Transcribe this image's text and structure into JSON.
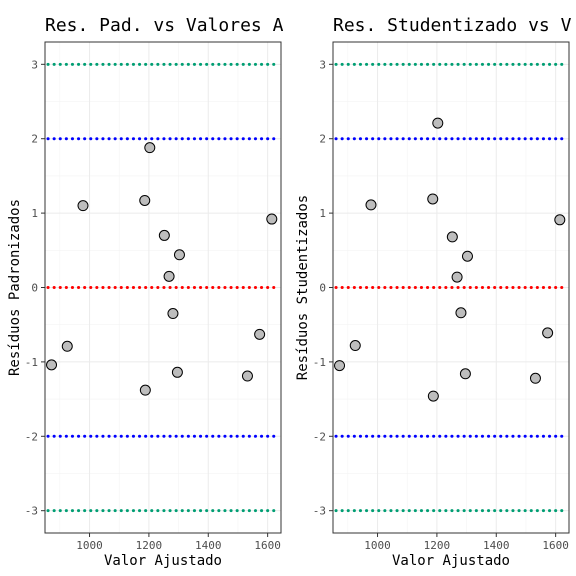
{
  "chart_data": [
    {
      "type": "scatter",
      "title": "Res. Pad. vs Valores A",
      "xlabel": "Valor Ajustado",
      "ylabel": "Resíduos Padronizados",
      "xlim": [
        850,
        1645
      ],
      "ylim": [
        -3.3,
        3.3
      ],
      "x_ticks": [
        1000,
        1200,
        1400,
        1600
      ],
      "y_ticks": [
        -3,
        -2,
        -1,
        0,
        1,
        2,
        3
      ],
      "grid": true,
      "reference_lines": [
        {
          "y": 3,
          "color": "#009E73"
        },
        {
          "y": 2,
          "color": "#0000FF"
        },
        {
          "y": 0,
          "color": "#FF0000"
        },
        {
          "y": -2,
          "color": "#0000FF"
        },
        {
          "y": -3,
          "color": "#009E73"
        }
      ],
      "points": [
        {
          "x": 872,
          "y": -1.04
        },
        {
          "x": 925,
          "y": -0.79
        },
        {
          "x": 978,
          "y": 1.1
        },
        {
          "x": 1186,
          "y": 1.17
        },
        {
          "x": 1188,
          "y": -1.38
        },
        {
          "x": 1203,
          "y": 1.88
        },
        {
          "x": 1252,
          "y": 0.7
        },
        {
          "x": 1268,
          "y": 0.15
        },
        {
          "x": 1281,
          "y": -0.35
        },
        {
          "x": 1296,
          "y": -1.14
        },
        {
          "x": 1303,
          "y": 0.44
        },
        {
          "x": 1532,
          "y": -1.19
        },
        {
          "x": 1573,
          "y": -0.63
        },
        {
          "x": 1614,
          "y": 0.92
        }
      ]
    },
    {
      "type": "scatter",
      "title": "Res. Studentizado vs V",
      "xlabel": "Valor Ajustado",
      "ylabel": "Resíduos Studentizados",
      "xlim": [
        850,
        1645
      ],
      "ylim": [
        -3.3,
        3.3
      ],
      "x_ticks": [
        1000,
        1200,
        1400,
        1600
      ],
      "y_ticks": [
        -3,
        -2,
        -1,
        0,
        1,
        2,
        3
      ],
      "grid": true,
      "reference_lines": [
        {
          "y": 3,
          "color": "#009E73"
        },
        {
          "y": 2,
          "color": "#0000FF"
        },
        {
          "y": 0,
          "color": "#FF0000"
        },
        {
          "y": -2,
          "color": "#0000FF"
        },
        {
          "y": -3,
          "color": "#009E73"
        }
      ],
      "points": [
        {
          "x": 872,
          "y": -1.05
        },
        {
          "x": 925,
          "y": -0.78
        },
        {
          "x": 978,
          "y": 1.11
        },
        {
          "x": 1186,
          "y": 1.19
        },
        {
          "x": 1188,
          "y": -1.46
        },
        {
          "x": 1203,
          "y": 2.21
        },
        {
          "x": 1252,
          "y": 0.68
        },
        {
          "x": 1268,
          "y": 0.14
        },
        {
          "x": 1281,
          "y": -0.34
        },
        {
          "x": 1296,
          "y": -1.16
        },
        {
          "x": 1303,
          "y": 0.42
        },
        {
          "x": 1532,
          "y": -1.22
        },
        {
          "x": 1573,
          "y": -0.61
        },
        {
          "x": 1614,
          "y": 0.91
        }
      ]
    }
  ]
}
